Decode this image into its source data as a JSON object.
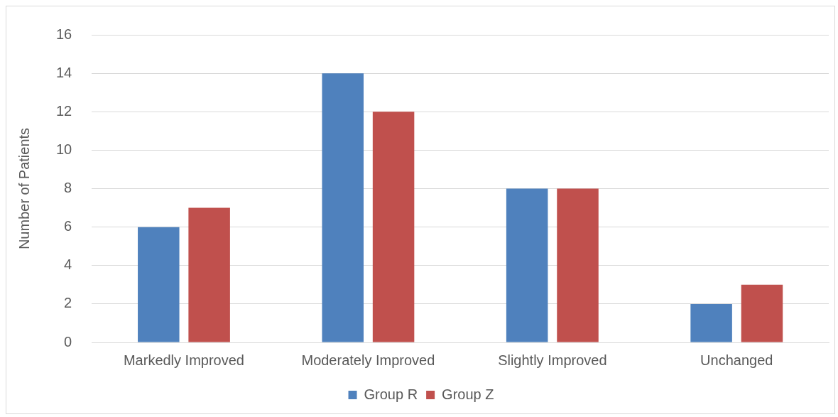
{
  "chart_data": {
    "type": "bar",
    "ylabel": "Number of Patients",
    "categories": [
      "Markedly Improved",
      "Moderately Improved",
      "Slightly Improved",
      "Unchanged"
    ],
    "series": [
      {
        "name": "Group R",
        "color": "#4f81bd",
        "values": [
          6,
          14,
          8,
          2
        ]
      },
      {
        "name": "Group Z",
        "color": "#c0504d",
        "values": [
          7,
          12,
          8,
          3
        ]
      }
    ],
    "ylim": [
      0,
      16
    ],
    "yticks": [
      0,
      2,
      4,
      6,
      8,
      10,
      12,
      14,
      16
    ],
    "grid": "y",
    "legend": "bottom"
  }
}
